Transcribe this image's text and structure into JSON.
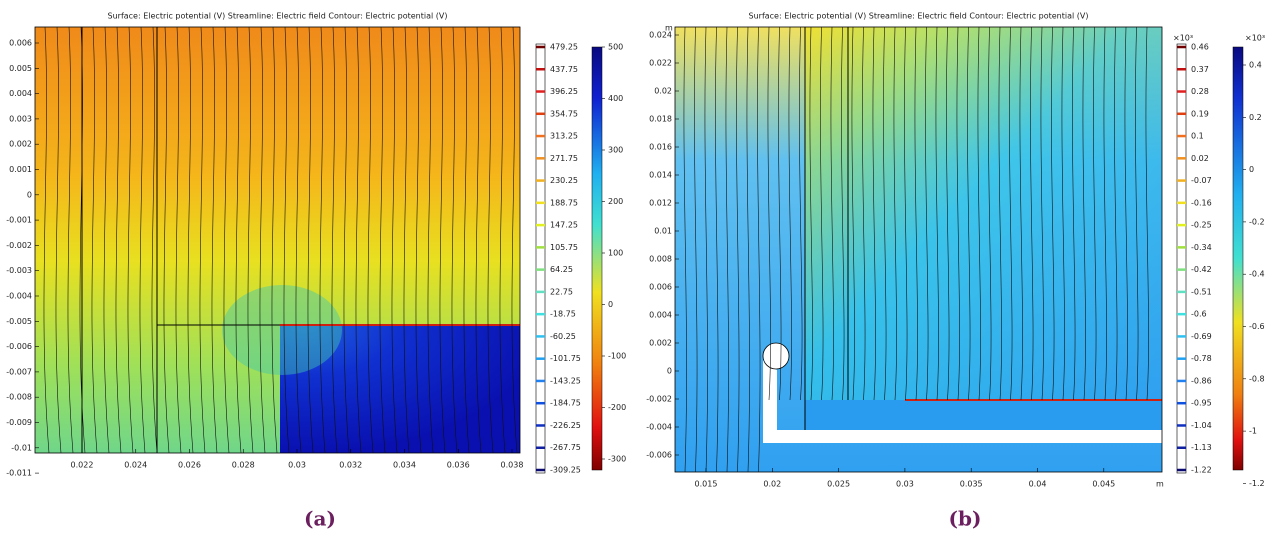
{
  "panels": [
    {
      "title": "Surface: Electric potential (V)  Streamline: Electric field  Contour: Electric potential (V)",
      "yticks": [
        "0.006",
        "0.005",
        "0.004",
        "0.003",
        "0.002",
        "0.001",
        "0",
        "-0.001",
        "-0.002",
        "-0.003",
        "-0.004",
        "-0.005",
        "-0.006",
        "-0.007",
        "-0.008",
        "-0.009",
        "-0.01",
        "-0.011"
      ],
      "xticks": [
        "0.022",
        "0.024",
        "0.026",
        "0.028",
        "0.03",
        "0.032",
        "0.034",
        "0.036",
        "0.038"
      ],
      "contour_labels": [
        "479.25",
        "437.75",
        "396.25",
        "354.75",
        "313.25",
        "271.75",
        "230.25",
        "188.75",
        "147.25",
        "105.75",
        "64.25",
        "22.75",
        "-18.75",
        "-60.25",
        "-101.75",
        "-143.25",
        "-184.75",
        "-226.25",
        "-267.75",
        "-309.25"
      ],
      "colorbar_ticks": [
        "500",
        "400",
        "300",
        "200",
        "100",
        "0",
        "-100",
        "-200",
        "-300"
      ],
      "caption": "(a)"
    },
    {
      "title": "Surface: Electric potential (V)  Streamline: Electric field  Contour: Electric potential (V)",
      "y_unit": "m",
      "x_unit": "m",
      "yticks": [
        "0.024",
        "0.022",
        "0.02",
        "0.018",
        "0.016",
        "0.014",
        "0.012",
        "0.01",
        "0.008",
        "0.006",
        "0.004",
        "0.002",
        "0",
        "-0.002",
        "-0.004",
        "-0.006"
      ],
      "xticks": [
        "0.015",
        "0.02",
        "0.025",
        "0.03",
        "0.035",
        "0.04",
        "0.045"
      ],
      "contour_exponent": "×10³",
      "contour_labels": [
        "0.46",
        "0.37",
        "0.28",
        "0.19",
        "0.1",
        "0.02",
        "-0.07",
        "-0.16",
        "-0.25",
        "-0.34",
        "-0.42",
        "-0.51",
        "-0.6",
        "-0.69",
        "-0.78",
        "-0.86",
        "-0.95",
        "-1.04",
        "-1.13",
        "-1.22"
      ],
      "colorbar_exponent": "×10³",
      "colorbar_ticks": [
        "0.4",
        "0.2",
        "0",
        "-0.2",
        "-0.4",
        "-0.6",
        "-0.8",
        "-1",
        "-1.2"
      ],
      "caption": "(b)"
    }
  ]
}
